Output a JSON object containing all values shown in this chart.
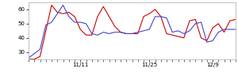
{
  "title": "",
  "xlim": [
    0,
    36
  ],
  "ylim": [
    25,
    65
  ],
  "yticks": [
    30,
    40,
    50,
    60
  ],
  "xtick_pos": [
    9,
    21,
    32
  ],
  "xtick_labels": [
    "11/11",
    "11/25",
    "12/9"
  ],
  "red_line": [
    25,
    25,
    27,
    45,
    63,
    58,
    57,
    58,
    55,
    46,
    42,
    42,
    55,
    62,
    55,
    48,
    44,
    43,
    43,
    43,
    55,
    57,
    60,
    55,
    43,
    42,
    41,
    40,
    52,
    53,
    40,
    38,
    47,
    50,
    44,
    52,
    53
  ],
  "blue_line": [
    26,
    29,
    32,
    49,
    51,
    57,
    63,
    55,
    51,
    51,
    50,
    43,
    42,
    44,
    43,
    44,
    44,
    43,
    43,
    44,
    45,
    46,
    55,
    55,
    54,
    44,
    45,
    43,
    45,
    50,
    51,
    37,
    38,
    44,
    46,
    46,
    46
  ],
  "red_color": "#cc0000",
  "blue_color": "#4444cc",
  "bg_color": "#ffffff",
  "linewidth": 0.8,
  "figsize": [
    3.0,
    0.96
  ],
  "dpi": 100
}
